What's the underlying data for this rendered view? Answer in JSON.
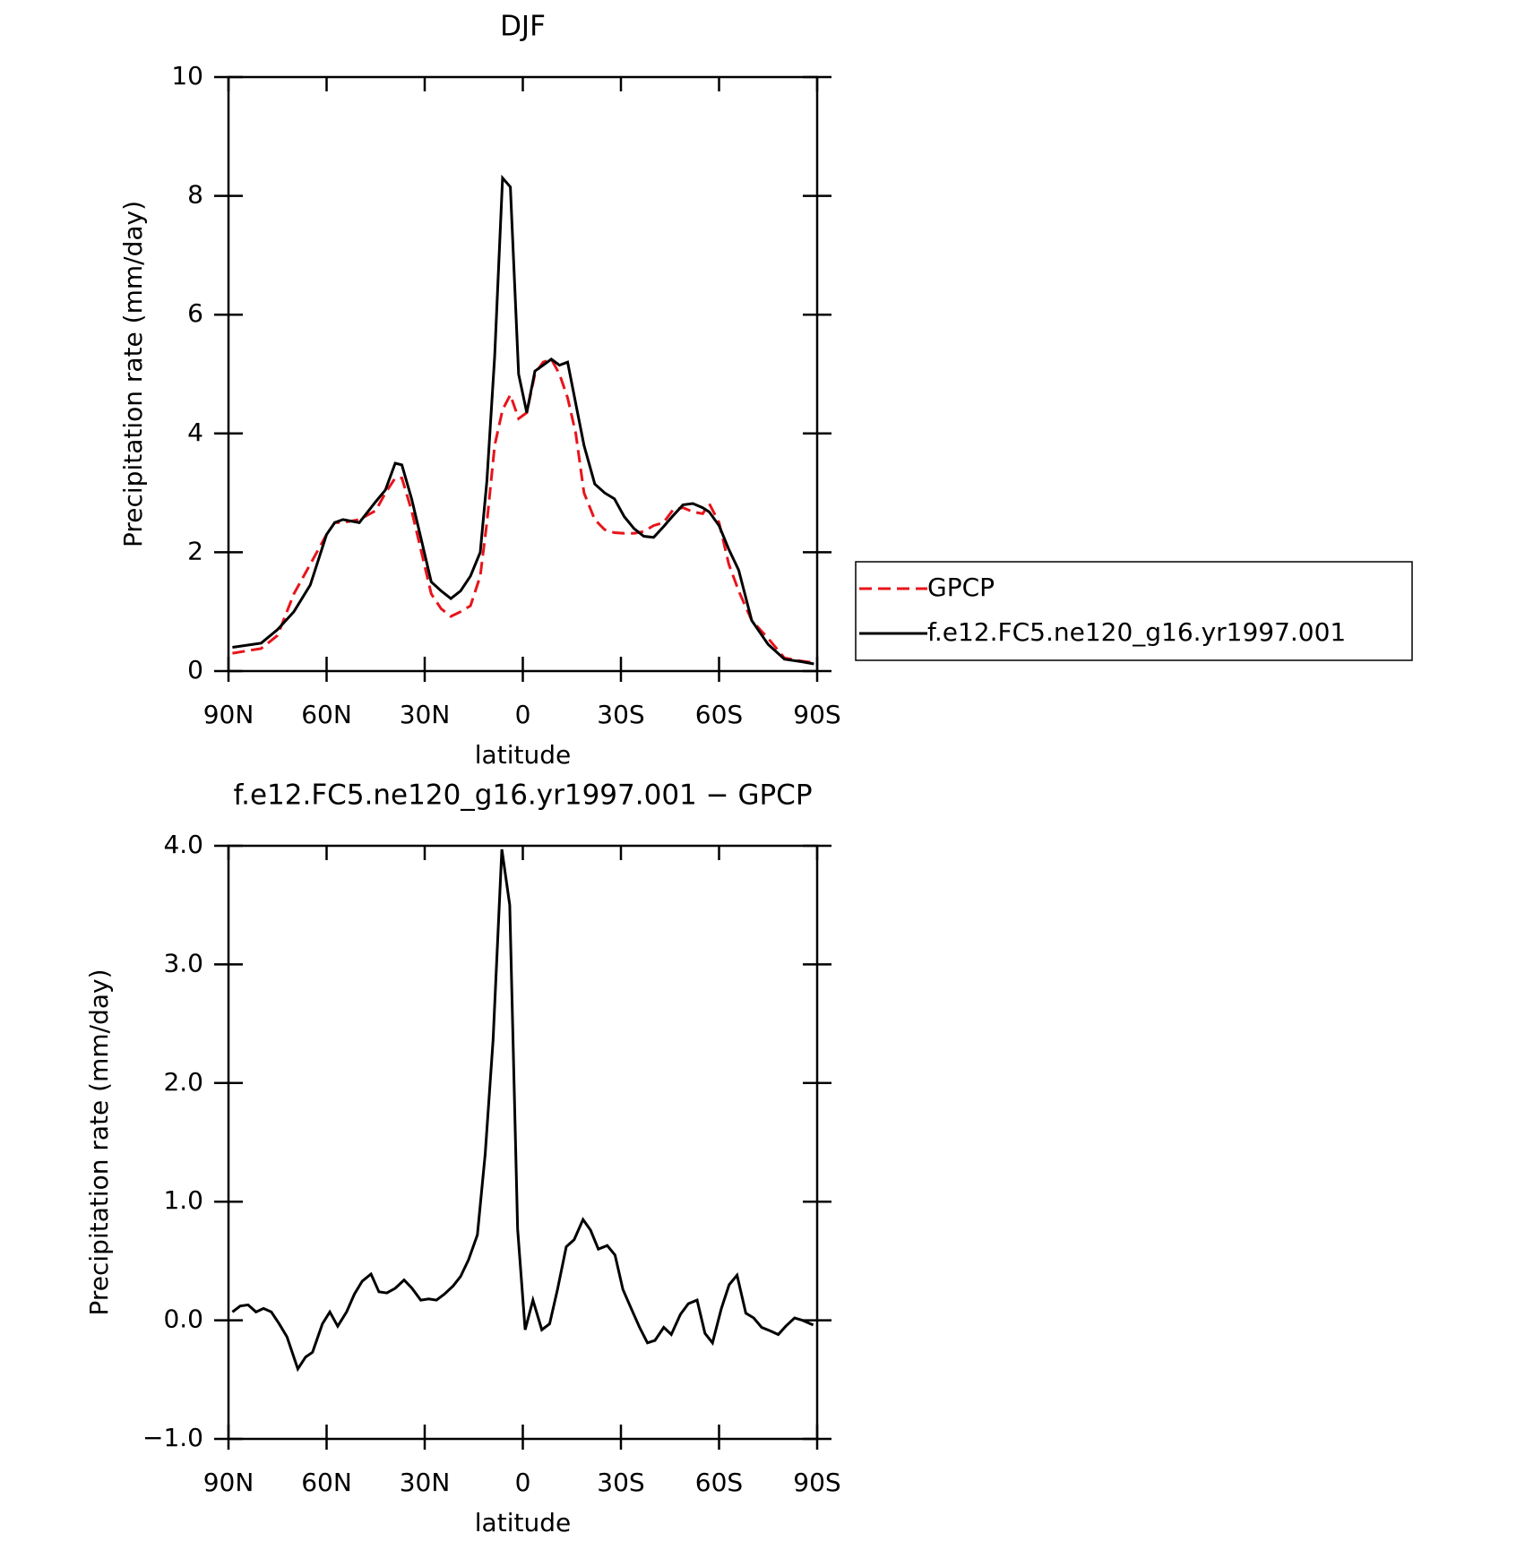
{
  "chart_data": [
    {
      "type": "line",
      "title": "DJF",
      "xlabel": "latitude",
      "ylabel": "Precipitation rate (mm/day)",
      "xlim": [
        90,
        -90
      ],
      "xticks": [
        {
          "value": 90,
          "label": "90N"
        },
        {
          "value": 60,
          "label": "60N"
        },
        {
          "value": 30,
          "label": "30N"
        },
        0,
        {
          "value": -30,
          "label": "30S"
        },
        {
          "value": -60,
          "label": "60S"
        },
        {
          "value": -90,
          "label": "90S"
        }
      ],
      "ylim": [
        0,
        10
      ],
      "yticks": [
        0,
        2,
        4,
        6,
        8,
        10
      ],
      "legend": "right",
      "x": [
        88.8,
        80,
        75,
        70,
        65,
        60,
        57.5,
        55,
        50,
        45,
        42,
        39,
        37,
        34,
        31,
        28,
        25,
        22,
        19,
        16,
        13,
        11,
        8.6,
        6.2,
        3.8,
        1.3,
        -1.2,
        -3.7,
        -6.2,
        -8.7,
        -11.2,
        -13.7,
        -16.2,
        -18.7,
        -22,
        -25,
        -28,
        -31,
        -34,
        -37,
        -40,
        -43,
        -46,
        -49,
        -52,
        -55,
        -57,
        -60,
        -63,
        -66,
        -70,
        -75,
        -80,
        -85,
        -89
      ],
      "series": [
        {
          "name": "GPCP",
          "color": "#e8141b",
          "line_style": "dashed",
          "values": [
            0.3,
            0.38,
            0.6,
            1.3,
            1.8,
            2.3,
            2.5,
            2.5,
            2.55,
            2.7,
            3.0,
            3.25,
            3.25,
            2.7,
            2.0,
            1.3,
            1.05,
            0.92,
            1.0,
            1.1,
            1.6,
            2.5,
            3.8,
            4.4,
            4.65,
            4.25,
            4.35,
            5.0,
            5.2,
            5.25,
            5.0,
            4.6,
            4.0,
            3.0,
            2.55,
            2.38,
            2.33,
            2.32,
            2.32,
            2.35,
            2.45,
            2.5,
            2.72,
            2.75,
            2.68,
            2.65,
            2.82,
            2.5,
            1.8,
            1.35,
            0.85,
            0.55,
            0.22,
            0.17,
            0.14
          ]
        },
        {
          "name": "f.e12.FC5.ne120_g16.yr1997.001",
          "color": "#000000",
          "line_style": "solid",
          "values": [
            0.4,
            0.47,
            0.7,
            1.0,
            1.45,
            2.3,
            2.5,
            2.55,
            2.5,
            2.85,
            3.05,
            3.5,
            3.47,
            2.9,
            2.2,
            1.5,
            1.35,
            1.22,
            1.35,
            1.6,
            2.0,
            3.2,
            5.3,
            8.3,
            8.15,
            5.0,
            4.35,
            5.05,
            5.15,
            5.25,
            5.15,
            5.2,
            4.5,
            3.8,
            3.15,
            3.0,
            2.9,
            2.6,
            2.4,
            2.27,
            2.25,
            2.43,
            2.62,
            2.8,
            2.82,
            2.75,
            2.68,
            2.45,
            2.05,
            1.7,
            0.85,
            0.45,
            0.2,
            0.16,
            0.12
          ]
        }
      ]
    },
    {
      "type": "line",
      "title": "f.e12.FC5.ne120_g16.yr1997.001 − GPCP",
      "xlabel": "latitude",
      "ylabel": "Precipitation rate (mm/day)",
      "xlim": [
        90,
        -90
      ],
      "xticks": [
        {
          "value": 90,
          "label": "90N"
        },
        {
          "value": 60,
          "label": "60N"
        },
        {
          "value": 30,
          "label": "30N"
        },
        0,
        {
          "value": -30,
          "label": "30S"
        },
        {
          "value": -60,
          "label": "60S"
        },
        {
          "value": -90,
          "label": "90S"
        }
      ],
      "ylim": [
        -1,
        4
      ],
      "yticks": [
        {
          "value": -1,
          "label": "−1.0"
        },
        {
          "value": 0,
          "label": "0.0"
        },
        {
          "value": 1,
          "label": "1.0"
        },
        {
          "value": 2,
          "label": "2.0"
        },
        {
          "value": 3,
          "label": "3.0"
        },
        {
          "value": 4,
          "label": "4.0"
        }
      ],
      "x": [
        88.8,
        86.4,
        84,
        81.6,
        79.3,
        76.9,
        74.5,
        72.1,
        68.8,
        66.4,
        64.3,
        61.3,
        59,
        56.6,
        53.9,
        51.5,
        49.1,
        46.4,
        44,
        41.6,
        39,
        36.3,
        33.9,
        31.2,
        28.8,
        26.4,
        24,
        21.3,
        19,
        16.6,
        13.9,
        11.5,
        9.1,
        6.4,
        4,
        1.6,
        -0.7,
        -3.1,
        -5.8,
        -8.2,
        -10.6,
        -13.3,
        -15.7,
        -18.4,
        -20.7,
        -23.1,
        -25.8,
        -28.2,
        -30.6,
        -33.3,
        -35.7,
        -38.1,
        -40.4,
        -43.1,
        -45.4,
        -48.2,
        -50.6,
        -53.3,
        -55.7,
        -58,
        -60.7,
        -63.1,
        -65.5,
        -68.2,
        -70.6,
        -73,
        -75.7,
        -78.1,
        -80.4,
        -83.1,
        -85.5,
        -88.8
      ],
      "series": [
        {
          "color": "#000000",
          "line_style": "solid",
          "values": [
            0.07,
            0.12,
            0.13,
            0.07,
            0.1,
            0.07,
            -0.03,
            -0.14,
            -0.41,
            -0.31,
            -0.27,
            -0.03,
            0.07,
            -0.05,
            0.07,
            0.22,
            0.33,
            0.39,
            0.24,
            0.23,
            0.27,
            0.34,
            0.27,
            0.17,
            0.18,
            0.17,
            0.22,
            0.29,
            0.37,
            0.51,
            0.72,
            1.4,
            2.36,
            3.97,
            3.5,
            0.77,
            -0.08,
            0.17,
            -0.08,
            -0.03,
            0.26,
            0.62,
            0.68,
            0.85,
            0.76,
            0.6,
            0.63,
            0.55,
            0.26,
            0.09,
            -0.06,
            -0.19,
            -0.17,
            -0.06,
            -0.12,
            0.05,
            0.14,
            0.17,
            -0.11,
            -0.19,
            0.1,
            0.3,
            0.38,
            0.06,
            0.02,
            -0.06,
            -0.09,
            -0.12,
            -0.05,
            0.02,
            0,
            -0.04
          ]
        }
      ]
    }
  ]
}
